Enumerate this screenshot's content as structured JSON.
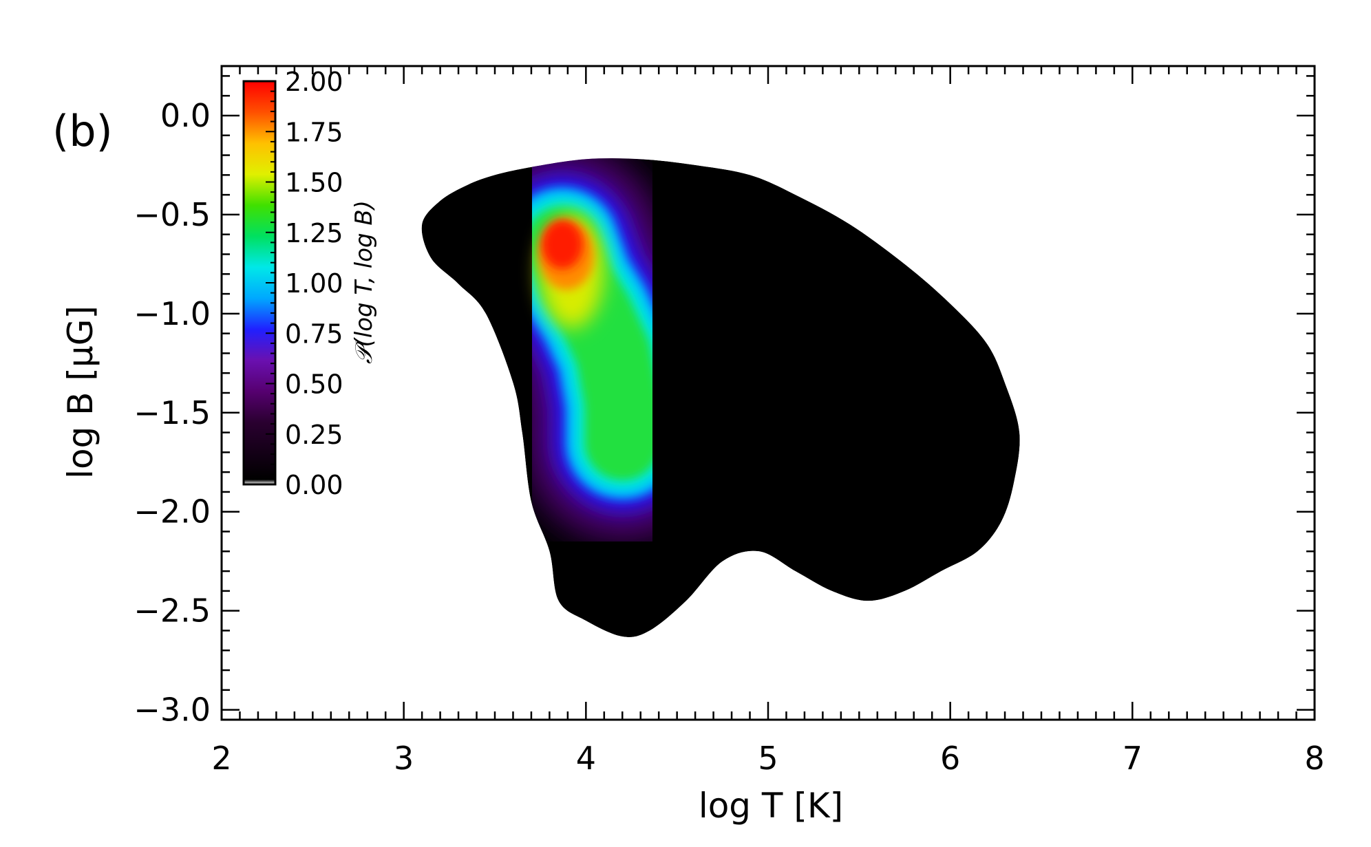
{
  "panel_label": "(b)",
  "chart_data": {
    "type": "heatmap",
    "xlabel": "log T [K]",
    "ylabel": "log B [μG]",
    "xlim": [
      2,
      8
    ],
    "ylim": [
      -3.05,
      0.25
    ],
    "x_ticks": [
      2,
      3,
      4,
      5,
      6,
      7,
      8
    ],
    "x_tick_labels": [
      "2",
      "3",
      "4",
      "5",
      "6",
      "7",
      "8"
    ],
    "y_ticks": [
      0.0,
      -0.5,
      -1.0,
      -1.5,
      -2.0,
      -2.5,
      -3.0
    ],
    "y_tick_labels": [
      "0.0",
      "−0.5",
      "−1.0",
      "−1.5",
      "−2.0",
      "−2.5",
      "−3.0"
    ],
    "grid": false,
    "colorbar": {
      "title": "𝒫(log T, log B)",
      "range": [
        0.0,
        2.0
      ],
      "ticks": [
        0.0,
        0.25,
        0.5,
        0.75,
        1.0,
        1.25,
        1.5,
        1.75,
        2.0
      ],
      "tick_labels": [
        "0.00",
        "0.25",
        "0.50",
        "0.75",
        "1.00",
        "1.25",
        "1.50",
        "1.75",
        "2.00"
      ],
      "placement": "top-left-inside",
      "colormap": [
        "#ffffff",
        "#000000",
        "#2a0030",
        "#560070",
        "#6a10b0",
        "#2020ff",
        "#00a8ff",
        "#00e8e8",
        "#00e060",
        "#40e000",
        "#e0f000",
        "#ffc000",
        "#ff5000",
        "#ff0000"
      ]
    },
    "distribution": {
      "peak": {
        "x": 3.87,
        "y": -0.65,
        "value": 2.0
      },
      "high_density_ridge": [
        {
          "x": 3.87,
          "y": -0.65
        },
        {
          "x": 3.95,
          "y": -0.85
        },
        {
          "x": 4.05,
          "y": -1.0
        },
        {
          "x": 4.15,
          "y": -1.2
        },
        {
          "x": 4.2,
          "y": -1.45
        },
        {
          "x": 4.2,
          "y": -1.65
        }
      ],
      "support_boundary": [
        [
          3.1,
          -0.55
        ],
        [
          3.2,
          -0.43
        ],
        [
          3.35,
          -0.35
        ],
        [
          3.5,
          -0.3
        ],
        [
          3.7,
          -0.26
        ],
        [
          4.0,
          -0.22
        ],
        [
          4.3,
          -0.22
        ],
        [
          4.6,
          -0.25
        ],
        [
          4.9,
          -0.3
        ],
        [
          5.15,
          -0.4
        ],
        [
          5.45,
          -0.55
        ],
        [
          5.75,
          -0.75
        ],
        [
          6.0,
          -0.95
        ],
        [
          6.2,
          -1.15
        ],
        [
          6.3,
          -1.35
        ],
        [
          6.38,
          -1.6
        ],
        [
          6.35,
          -1.85
        ],
        [
          6.28,
          -2.05
        ],
        [
          6.15,
          -2.2
        ],
        [
          5.95,
          -2.3
        ],
        [
          5.75,
          -2.4
        ],
        [
          5.55,
          -2.45
        ],
        [
          5.35,
          -2.4
        ],
        [
          5.15,
          -2.3
        ],
        [
          4.95,
          -2.2
        ],
        [
          4.75,
          -2.25
        ],
        [
          4.55,
          -2.45
        ],
        [
          4.35,
          -2.6
        ],
        [
          4.2,
          -2.63
        ],
        [
          4.0,
          -2.55
        ],
        [
          3.85,
          -2.45
        ],
        [
          3.8,
          -2.2
        ],
        [
          3.7,
          -1.95
        ],
        [
          3.65,
          -1.6
        ],
        [
          3.6,
          -1.35
        ],
        [
          3.45,
          -1.0
        ],
        [
          3.3,
          -0.85
        ],
        [
          3.15,
          -0.72
        ]
      ]
    }
  }
}
